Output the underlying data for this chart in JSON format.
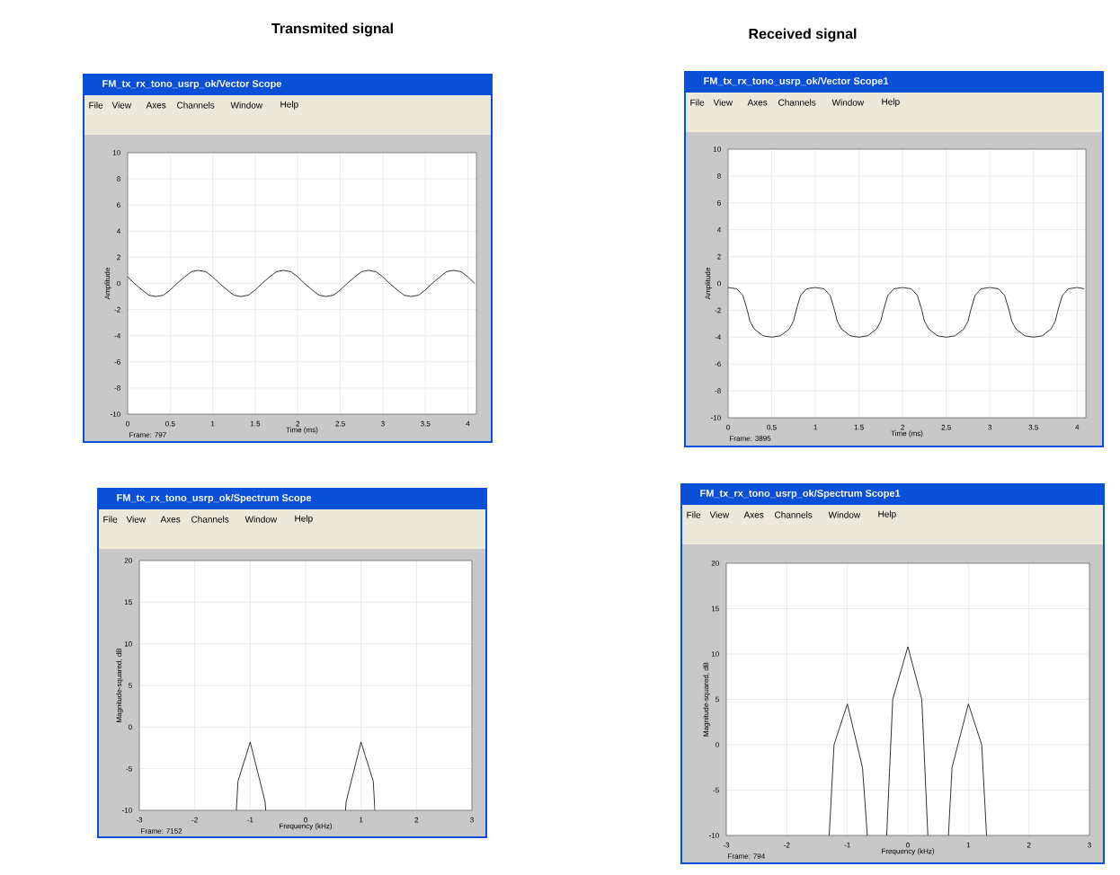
{
  "chart_data": [
    {
      "type": "line",
      "title": "Transmited signal",
      "subtitle": "FM_tx_rx_tono_usrp_ok/Vector Scope",
      "xlabel": "Time (ms)",
      "ylabel": "Amplitude",
      "annotations": [
        "Frame: 797",
        "File",
        "View",
        "Axes",
        "Channels",
        "Window",
        "Help"
      ],
      "x": [
        0,
        0.08,
        0.17,
        0.25,
        0.33,
        0.42,
        0.5,
        0.58,
        0.67,
        0.75,
        0.83,
        0.92,
        1,
        1.08,
        1.17,
        1.25,
        1.33,
        1.42,
        1.5,
        1.58,
        1.67,
        1.75,
        1.83,
        1.92,
        2,
        2.08,
        2.17,
        2.25,
        2.33,
        2.42,
        2.5,
        2.58,
        2.67,
        2.75,
        2.83,
        2.92,
        3,
        3.08,
        3.17,
        3.25,
        3.33,
        3.42,
        3.5,
        3.58,
        3.67,
        3.75,
        3.83,
        3.92,
        4,
        4.08
      ],
      "values": [
        0.5,
        0,
        -0.5,
        -0.9,
        -1,
        -0.9,
        -0.5,
        0,
        0.5,
        0.9,
        1,
        0.9,
        0.5,
        0,
        -0.5,
        -0.9,
        -1,
        -0.9,
        -0.5,
        0,
        0.5,
        0.9,
        1,
        0.9,
        0.5,
        0,
        -0.5,
        -0.9,
        -1,
        -0.9,
        -0.5,
        0,
        0.5,
        0.9,
        1,
        0.9,
        0.5,
        0,
        -0.5,
        -0.9,
        -1,
        -0.9,
        -0.5,
        0,
        0.5,
        0.9,
        1,
        0.9,
        0.5,
        0
      ],
      "color": "#000000",
      "marker": "none",
      "line_style": "solid",
      "grid": true,
      "xlim": [
        0,
        4.1
      ],
      "xticks": [
        0,
        0.5,
        1,
        1.5,
        2,
        2.5,
        3,
        3.5,
        4
      ],
      "ylim": [
        -10,
        10
      ],
      "yticks": [
        -10,
        -8,
        -6,
        -4,
        -2,
        0,
        2,
        4,
        6,
        8,
        10
      ]
    },
    {
      "type": "line",
      "title": "Received signal",
      "subtitle": "FM_tx_rx_tono_usrp_ok/Vector Scope1",
      "xlabel": "Time (ms)",
      "ylabel": "Amplitude",
      "annotations": [
        "Frame: 3895",
        "File",
        "View",
        "Axes",
        "Channels",
        "Window",
        "Help"
      ],
      "x": [
        0,
        0.1,
        0.17,
        0.22,
        0.25,
        0.3,
        0.4,
        0.5,
        0.6,
        0.7,
        0.75,
        0.78,
        0.83,
        0.9,
        1,
        1.1,
        1.17,
        1.22,
        1.25,
        1.3,
        1.4,
        1.5,
        1.6,
        1.7,
        1.75,
        1.78,
        1.83,
        1.9,
        2,
        2.1,
        2.17,
        2.22,
        2.25,
        2.3,
        2.4,
        2.5,
        2.6,
        2.7,
        2.75,
        2.78,
        2.83,
        2.9,
        3,
        3.1,
        3.17,
        3.22,
        3.25,
        3.3,
        3.4,
        3.5,
        3.6,
        3.7,
        3.75,
        3.78,
        3.83,
        3.9,
        4,
        4.08
      ],
      "values": [
        -0.3,
        -0.4,
        -0.9,
        -2,
        -2.8,
        -3.4,
        -3.9,
        -4,
        -3.9,
        -3.4,
        -2.8,
        -2,
        -0.9,
        -0.4,
        -0.3,
        -0.4,
        -0.9,
        -2,
        -2.8,
        -3.4,
        -3.9,
        -4,
        -3.9,
        -3.4,
        -2.8,
        -2,
        -0.9,
        -0.4,
        -0.3,
        -0.4,
        -0.9,
        -2,
        -2.8,
        -3.4,
        -3.9,
        -4,
        -3.9,
        -3.4,
        -2.8,
        -2,
        -0.9,
        -0.4,
        -0.3,
        -0.4,
        -0.9,
        -2,
        -2.8,
        -3.4,
        -3.9,
        -4,
        -3.9,
        -3.4,
        -2.8,
        -2,
        -0.9,
        -0.4,
        -0.3,
        -0.4
      ],
      "color": "#000000",
      "marker": "none",
      "line_style": "solid",
      "grid": true,
      "xlim": [
        0,
        4.1
      ],
      "xticks": [
        0,
        0.5,
        1,
        1.5,
        2,
        2.5,
        3,
        3.5,
        4
      ],
      "ylim": [
        -10,
        10
      ],
      "yticks": [
        -10,
        -8,
        -6,
        -4,
        -2,
        0,
        2,
        4,
        6,
        8,
        10
      ]
    },
    {
      "type": "line",
      "subtitle": "FM_tx_rx_tono_usrp_ok/Spectrum Scope",
      "xlabel": "Frequency (kHz)",
      "ylabel": "Magnitude-squared, dB",
      "annotations": [
        "Frame: 7152",
        "File",
        "View",
        "Axes",
        "Channels",
        "Window",
        "Help"
      ],
      "x": [
        -1.25,
        -1.22,
        -1,
        -0.73,
        -0.72,
        0,
        0.72,
        0.73,
        1,
        1.22,
        1.25
      ],
      "values": [
        -10,
        -6.5,
        -1.8,
        -9,
        -10,
        null,
        -10,
        -9,
        -1.8,
        -6.5,
        -10
      ],
      "color": "#000000",
      "marker": "none",
      "line_style": "solid",
      "grid": true,
      "xlim": [
        -3,
        3
      ],
      "xticks": [
        -3,
        -2,
        -1,
        0,
        1,
        2,
        3
      ],
      "ylim": [
        -10,
        20
      ],
      "yticks": [
        -10,
        -5,
        0,
        5,
        10,
        15,
        20
      ]
    },
    {
      "type": "line",
      "subtitle": "FM_tx_rx_tono_usrp_ok/Spectrum Scope1",
      "xlabel": "Frequency (kHz)",
      "ylabel": "Magnitude-squared, dB",
      "annotations": [
        "Frame: 794",
        "File",
        "View",
        "Axes",
        "Channels",
        "Window",
        "Help"
      ],
      "x": [
        -1.3,
        -1.22,
        -1,
        -0.75,
        -0.67,
        -0.5,
        -0.35,
        -0.25,
        0,
        0.23,
        0.33,
        0.5,
        0.67,
        0.73,
        1,
        1.22,
        1.3
      ],
      "values": [
        -10,
        0,
        4.5,
        -2.5,
        -10,
        null,
        -10,
        5,
        10.8,
        5,
        -10,
        null,
        -10,
        -2.5,
        4.5,
        0,
        -10
      ],
      "color": "#000000",
      "marker": "none",
      "line_style": "solid",
      "grid": true,
      "xlim": [
        -3,
        3
      ],
      "xticks": [
        -3,
        -2,
        -1,
        0,
        1,
        2,
        3
      ],
      "ylim": [
        -10,
        20
      ],
      "yticks": [
        -10,
        -5,
        0,
        5,
        10,
        15,
        20
      ]
    }
  ]
}
